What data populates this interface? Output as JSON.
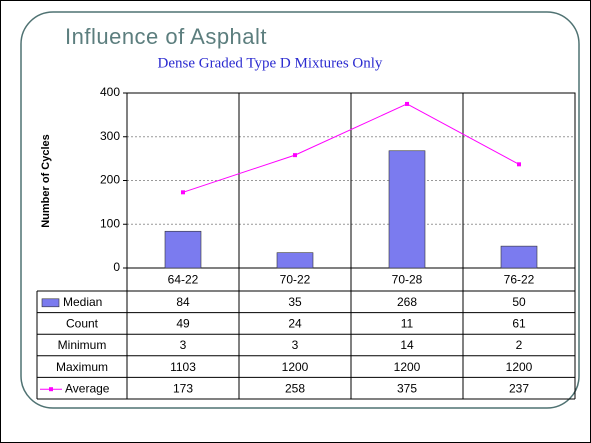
{
  "chart_data": {
    "type": "bar",
    "title": "Influence of Asphalt",
    "subtitle": "Dense Graded Type D Mixtures Only",
    "y_label": "Number of Cycles",
    "categories": [
      "64-22",
      "70-22",
      "70-28",
      "76-22"
    ],
    "series": [
      {
        "name": "Median",
        "type": "bar",
        "color": "#7b7bef",
        "values": [
          84,
          35,
          268,
          50
        ]
      },
      {
        "name": "Count",
        "values": [
          49,
          24,
          11,
          61
        ]
      },
      {
        "name": "Minimum",
        "values": [
          3,
          3,
          14,
          2
        ]
      },
      {
        "name": "Maximum",
        "values": [
          1103,
          1200,
          1200,
          1200
        ]
      },
      {
        "name": "Average",
        "type": "line",
        "color": "#ff00ff",
        "values": [
          173,
          258,
          375,
          237
        ]
      }
    ],
    "ylim": [
      0,
      400
    ],
    "yticks": [
      0,
      100,
      200,
      300,
      400
    ],
    "grid": true
  }
}
